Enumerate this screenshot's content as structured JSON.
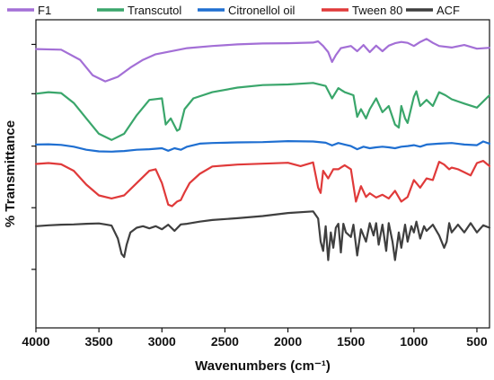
{
  "chart_data": {
    "type": "line",
    "title": "",
    "xlabel": "Wavenumbers (cm⁻¹)",
    "ylabel": "% Transmittance",
    "xlim": [
      4000,
      400
    ],
    "xticks": [
      4000,
      3500,
      3000,
      2500,
      2000,
      1500,
      1000,
      500
    ],
    "xtick_labels": [
      "4000",
      "3500",
      "3000",
      "2500",
      "2000",
      "1500",
      "1000",
      "500"
    ],
    "ylim": [
      0,
      100
    ],
    "yticks": [
      92,
      76,
      59,
      39,
      19
    ],
    "ytick_labels": [
      "",
      "",
      "",
      "",
      ""
    ],
    "legend_position": "top",
    "grid": false,
    "series": [
      {
        "name": "F1",
        "color": "#a36fd6",
        "x": [
          4000,
          3800,
          3650,
          3550,
          3450,
          3350,
          3250,
          3150,
          3050,
          2950,
          2800,
          2600,
          2400,
          2200,
          2000,
          1800,
          1760,
          1720,
          1680,
          1650,
          1620,
          1580,
          1500,
          1450,
          1400,
          1350,
          1300,
          1250,
          1200,
          1150,
          1100,
          1050,
          1000,
          950,
          900,
          850,
          800,
          700,
          600,
          500,
          400
        ],
        "y": [
          90.5,
          90.3,
          87,
          82,
          80,
          81.5,
          84.5,
          87,
          88.8,
          89.6,
          90.8,
          91.5,
          92,
          92.3,
          92.4,
          92.6,
          93,
          91.5,
          89.5,
          86.3,
          88.5,
          90.8,
          91.5,
          89.8,
          91.8,
          89.5,
          91.6,
          89.8,
          91.6,
          92.4,
          92.8,
          92.5,
          91.5,
          92.8,
          93.8,
          92.5,
          91.5,
          91,
          91.8,
          90.6,
          90.9
        ]
      },
      {
        "name": "Transcutol",
        "color": "#3aa66b",
        "x": [
          4000,
          3900,
          3800,
          3700,
          3600,
          3500,
          3400,
          3300,
          3200,
          3100,
          3000,
          2970,
          2930,
          2880,
          2860,
          2820,
          2750,
          2600,
          2400,
          2200,
          2000,
          1800,
          1700,
          1650,
          1600,
          1550,
          1480,
          1450,
          1420,
          1380,
          1350,
          1300,
          1250,
          1200,
          1150,
          1120,
          1100,
          1070,
          1050,
          1000,
          980,
          950,
          900,
          850,
          800,
          750,
          700,
          600,
          500,
          400
        ],
        "y": [
          76,
          76.5,
          76.2,
          73,
          68,
          63,
          61,
          63,
          69,
          74,
          74.5,
          66,
          68,
          64,
          64.5,
          71,
          74.5,
          76.5,
          78,
          78.8,
          79,
          79.5,
          78.5,
          74.5,
          77.8,
          76.5,
          75.5,
          68.5,
          71,
          68,
          71,
          74.5,
          70,
          72,
          66,
          65,
          72,
          68,
          66.5,
          75,
          76.8,
          72,
          74,
          72,
          76.5,
          75.5,
          74.2,
          72.8,
          71.5,
          75.5
        ]
      },
      {
        "name": "Citronellol oil",
        "color": "#1f6fd1",
        "x": [
          4000,
          3900,
          3800,
          3700,
          3600,
          3500,
          3400,
          3300,
          3200,
          3100,
          3000,
          2950,
          2900,
          2850,
          2800,
          2700,
          2600,
          2400,
          2200,
          2000,
          1800,
          1700,
          1650,
          1600,
          1550,
          1500,
          1450,
          1400,
          1350,
          1300,
          1250,
          1200,
          1150,
          1100,
          1050,
          1000,
          950,
          900,
          800,
          700,
          600,
          500,
          450,
          400
        ],
        "y": [
          59.5,
          59.6,
          59.4,
          58.8,
          57.8,
          57.3,
          57.2,
          57.4,
          57.8,
          58,
          58.3,
          57.5,
          58.3,
          57.8,
          58.8,
          59.8,
          60,
          60.2,
          60.3,
          60.6,
          60.5,
          60.1,
          59.2,
          60,
          59.5,
          59,
          58,
          58.8,
          58.3,
          58.6,
          58.8,
          58.6,
          58.3,
          58.8,
          59,
          59.3,
          58.8,
          59.5,
          59.8,
          60,
          59.5,
          59.3,
          60.5,
          59.8
        ]
      },
      {
        "name": "Tween 80",
        "color": "#e03a3a",
        "x": [
          4000,
          3900,
          3800,
          3700,
          3600,
          3500,
          3400,
          3300,
          3200,
          3100,
          3050,
          3000,
          2950,
          2920,
          2880,
          2850,
          2820,
          2780,
          2700,
          2600,
          2400,
          2200,
          2000,
          1900,
          1800,
          1760,
          1740,
          1720,
          1680,
          1640,
          1600,
          1550,
          1500,
          1460,
          1420,
          1380,
          1350,
          1300,
          1250,
          1200,
          1150,
          1100,
          1050,
          1000,
          950,
          900,
          850,
          800,
          760,
          720,
          700,
          650,
          600,
          550,
          500,
          450,
          400
        ],
        "y": [
          53.2,
          53.5,
          53.1,
          51,
          46.5,
          43,
          42,
          43,
          47,
          51,
          51.5,
          47,
          40,
          39.5,
          41,
          41.5,
          44,
          47,
          50,
          52.4,
          53,
          53.3,
          53.6,
          52.5,
          53.7,
          45.5,
          43.8,
          51,
          48.5,
          51.5,
          51.5,
          52.8,
          51.5,
          41,
          46,
          42.5,
          43.7,
          42.3,
          43.2,
          42,
          44.5,
          41,
          42.5,
          48,
          45.5,
          48.5,
          48,
          53.9,
          53,
          51.5,
          52,
          51.5,
          50.5,
          49.5,
          53.5,
          54.2,
          52.5
        ]
      },
      {
        "name": "ACF",
        "color": "#3f3f3f",
        "x": [
          4000,
          3900,
          3800,
          3700,
          3600,
          3500,
          3450,
          3400,
          3350,
          3320,
          3300,
          3280,
          3250,
          3200,
          3150,
          3100,
          3050,
          3000,
          2950,
          2900,
          2850,
          2800,
          2700,
          2600,
          2400,
          2200,
          2000,
          1800,
          1760,
          1740,
          1720,
          1700,
          1680,
          1660,
          1640,
          1620,
          1600,
          1580,
          1560,
          1540,
          1500,
          1480,
          1450,
          1420,
          1380,
          1350,
          1320,
          1300,
          1280,
          1250,
          1220,
          1200,
          1170,
          1150,
          1120,
          1100,
          1070,
          1050,
          1020,
          1000,
          980,
          950,
          920,
          900,
          850,
          800,
          760,
          740,
          720,
          700,
          650,
          600,
          550,
          500,
          450,
          400
        ],
        "y": [
          33,
          33.3,
          33.5,
          33.6,
          33.8,
          33.9,
          33.6,
          33.2,
          29,
          24,
          23,
          27,
          31,
          32.5,
          33,
          32.3,
          33,
          32,
          33.5,
          31.5,
          33.6,
          33.8,
          34.5,
          35,
          35.6,
          36.3,
          37.3,
          37.8,
          35.5,
          28,
          25,
          33,
          22,
          31,
          26,
          32.5,
          33.8,
          24.5,
          33.8,
          31,
          29.5,
          33.5,
          23.5,
          32,
          28,
          34,
          30,
          34,
          27,
          33.5,
          25,
          34,
          28,
          22,
          31,
          26,
          33.5,
          28,
          33,
          31,
          34.5,
          29,
          33,
          31.5,
          33.5,
          30,
          26,
          28,
          34,
          31,
          33.5,
          31,
          34,
          31,
          33.3,
          32.5
        ]
      }
    ]
  }
}
